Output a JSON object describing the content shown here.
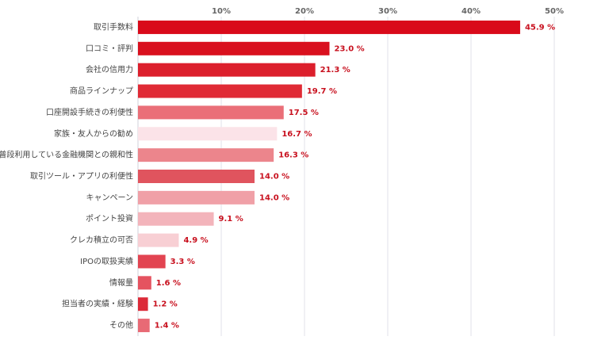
{
  "chart_data": {
    "type": "hbar",
    "categories": [
      "取引手数料",
      "口コミ・評判",
      "会社の信用力",
      "商品ラインナップ",
      "口座開設手続きの利便性",
      "家族・友人からの勧め",
      "普段利用している金融機関との親和性",
      "取引ツール・アプリの利便性",
      "キャンペーン",
      "ポイント投資",
      "クレカ積立の可否",
      "IPOの取扱実績",
      "情報量",
      "担当者の実績・経験",
      "その他"
    ],
    "values": [
      45.9,
      23.0,
      21.3,
      19.7,
      17.5,
      16.7,
      16.3,
      14.0,
      14.0,
      9.1,
      4.9,
      3.3,
      1.6,
      1.2,
      1.4
    ],
    "value_labels": [
      "45.9 %",
      "23.0 %",
      "21.3 %",
      "19.7 %",
      "17.5 %",
      "16.7 %",
      "16.3 %",
      "14.0 %",
      "14.0 %",
      "9.1 %",
      "4.9 %",
      "3.3 %",
      "1.6 %",
      "1.2 %",
      "1.4 %"
    ],
    "colors": [
      "#d90a1a",
      "#d9101e",
      "#dc1f2c",
      "#e02a35",
      "#ea6f78",
      "#fbe3e8",
      "#ec858c",
      "#e0545e",
      "#f0a0a7",
      "#f3b4bb",
      "#f8cfd4",
      "#e24451",
      "#e55360",
      "#dc2a38",
      "#e86a75"
    ],
    "xlim": [
      0,
      55
    ],
    "xticks": [
      {
        "value": 10,
        "label": "10%"
      },
      {
        "value": 20,
        "label": "20%"
      },
      {
        "value": 30,
        "label": "30%"
      },
      {
        "value": 40,
        "label": "40%"
      },
      {
        "value": 50,
        "label": "50%"
      }
    ],
    "grid": true
  }
}
